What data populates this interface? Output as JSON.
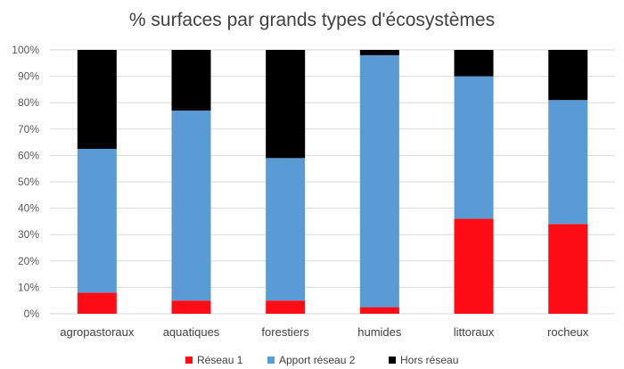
{
  "chart_data": {
    "type": "bar",
    "stacked": true,
    "title": "% surfaces par grands types d'écosystèmes",
    "categories": [
      "agropastoraux",
      "aquatiques",
      "forestiers",
      "humides",
      "littoraux",
      "rocheux"
    ],
    "series": [
      {
        "name": "Réseau 1",
        "color": "#ff0d16",
        "values": [
          8,
          5,
          5,
          2.5,
          36,
          34
        ]
      },
      {
        "name": "Apport réseau 2",
        "color": "#5b9bd5",
        "values": [
          54.5,
          72,
          54,
          95.5,
          54,
          47
        ]
      },
      {
        "name": "Hors réseau",
        "color": "#000000",
        "values": [
          37.5,
          23,
          41,
          2,
          10,
          19
        ]
      }
    ],
    "ylim": [
      0,
      100
    ],
    "yticks": [
      "0%",
      "10%",
      "20%",
      "30%",
      "40%",
      "50%",
      "60%",
      "70%",
      "80%",
      "90%",
      "100%"
    ],
    "grid": true,
    "legend": "bottom"
  }
}
